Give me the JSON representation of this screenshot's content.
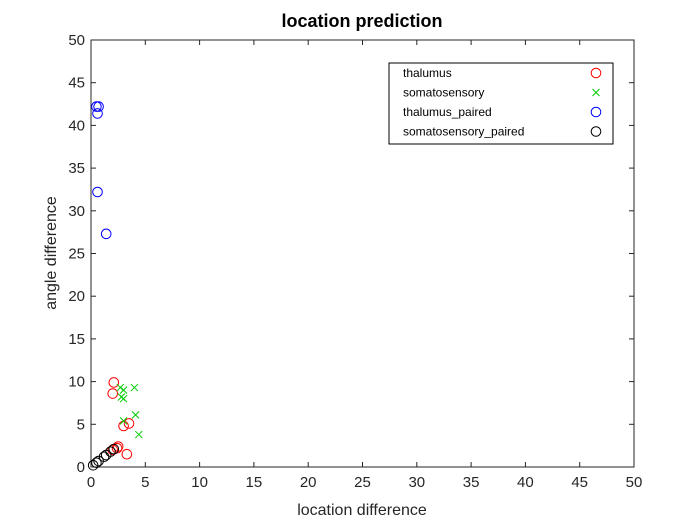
{
  "chart_data": {
    "type": "scatter",
    "title": "location prediction",
    "xlabel": "location difference",
    "ylabel": "angle difference",
    "xlim": [
      0,
      50
    ],
    "ylim": [
      0,
      50
    ],
    "xticks": [
      "0",
      "5",
      "10",
      "15",
      "20",
      "25",
      "30",
      "35",
      "40",
      "45",
      "50"
    ],
    "yticks": [
      "0",
      "5",
      "10",
      "15",
      "20",
      "25",
      "30",
      "35",
      "40",
      "45",
      "50"
    ],
    "grid": false,
    "legend_position": "top-right",
    "series": [
      {
        "name": "thalumus",
        "marker": "circle",
        "color": "#ff0000",
        "points": [
          {
            "x": 2.1,
            "y": 9.9
          },
          {
            "x": 2.0,
            "y": 8.6
          },
          {
            "x": 3.0,
            "y": 4.8
          },
          {
            "x": 3.5,
            "y": 5.1
          },
          {
            "x": 2.5,
            "y": 2.4
          },
          {
            "x": 2.4,
            "y": 2.2
          },
          {
            "x": 2.0,
            "y": 2.0
          },
          {
            "x": 3.3,
            "y": 1.5
          }
        ]
      },
      {
        "name": "somatosensory",
        "marker": "x",
        "color": "#00cc00",
        "points": [
          {
            "x": 2.7,
            "y": 9.3
          },
          {
            "x": 3.0,
            "y": 9.0
          },
          {
            "x": 4.0,
            "y": 9.3
          },
          {
            "x": 2.8,
            "y": 8.2
          },
          {
            "x": 3.0,
            "y": 8.0
          },
          {
            "x": 4.1,
            "y": 6.1
          },
          {
            "x": 3.0,
            "y": 5.4
          },
          {
            "x": 4.4,
            "y": 3.8
          }
        ]
      },
      {
        "name": "thalumus_paired",
        "marker": "circle",
        "color": "#0000ff",
        "points": [
          {
            "x": 0.5,
            "y": 42.2
          },
          {
            "x": 0.7,
            "y": 42.2
          },
          {
            "x": 0.6,
            "y": 41.4
          },
          {
            "x": 0.6,
            "y": 32.2
          },
          {
            "x": 1.4,
            "y": 27.3
          }
        ]
      },
      {
        "name": "somatosensory_paired",
        "marker": "circle",
        "color": "#000000",
        "points": [
          {
            "x": 0.2,
            "y": 0.2
          },
          {
            "x": 0.5,
            "y": 0.5
          },
          {
            "x": 0.7,
            "y": 0.7
          },
          {
            "x": 1.2,
            "y": 1.2
          },
          {
            "x": 1.4,
            "y": 1.4
          },
          {
            "x": 1.8,
            "y": 1.8
          },
          {
            "x": 2.1,
            "y": 2.1
          }
        ]
      }
    ]
  }
}
